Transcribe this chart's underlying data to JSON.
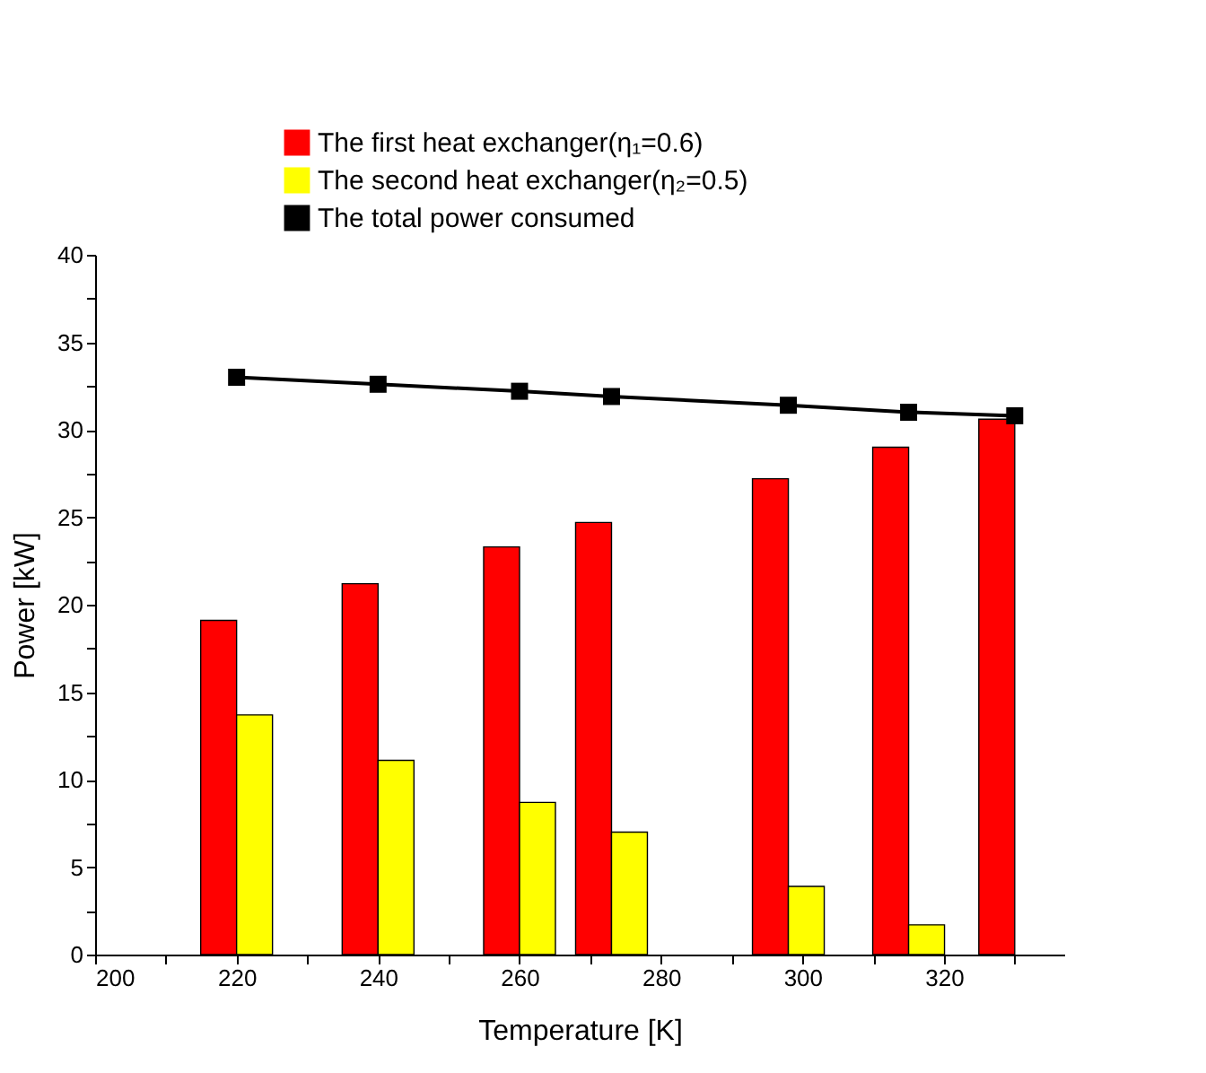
{
  "chart_data": {
    "type": "bar",
    "xlabel": "Temperature [K]",
    "ylabel": "Power [kW]",
    "x": [
      220,
      240,
      260,
      273,
      298,
      315,
      330
    ],
    "series": [
      {
        "name": "The first heat exchanger(η₁=0.6)",
        "color": "#ff0000",
        "values": [
          19.1,
          21.2,
          23.3,
          24.7,
          27.2,
          29.0,
          30.6
        ]
      },
      {
        "name": "The second heat exchanger(η₂=0.5)",
        "color": "#ffff00",
        "values": [
          13.7,
          11.1,
          8.7,
          7.0,
          3.9,
          1.7,
          null
        ]
      },
      {
        "name": "The total power consumed",
        "color": "#000000",
        "type": "line",
        "marker": "square",
        "values": [
          33.0,
          32.6,
          32.2,
          31.9,
          31.4,
          31.0,
          30.8
        ]
      }
    ],
    "xlim": [
      200,
      337
    ],
    "xticks": [
      200,
      {
        "value": 210,
        "label": null
      },
      220,
      {
        "value": 230,
        "label": null
      },
      240,
      {
        "value": 250,
        "label": null
      },
      260,
      {
        "value": 270,
        "label": null
      },
      280,
      {
        "value": 290,
        "label": null
      },
      300,
      {
        "value": 310,
        "label": null
      },
      320,
      {
        "value": 330,
        "label": null
      }
    ],
    "ylim": [
      0,
      40
    ],
    "yticks": [
      0,
      {
        "value": 2.5,
        "label": null
      },
      5,
      {
        "value": 7.5,
        "label": null
      },
      10,
      {
        "value": 12.5,
        "label": null
      },
      15,
      {
        "value": 17.5,
        "label": null
      },
      20,
      {
        "value": 22.5,
        "label": null
      },
      25,
      {
        "value": 27.5,
        "label": null
      },
      30,
      {
        "value": 32.5,
        "label": null
      },
      35,
      {
        "value": 37.5,
        "label": null
      },
      40
    ],
    "grid": false,
    "legend": "top left"
  }
}
